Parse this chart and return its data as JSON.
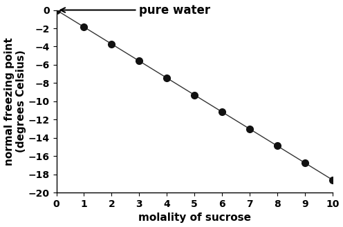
{
  "x": [
    0,
    1,
    2,
    3,
    4,
    5,
    6,
    7,
    8,
    9,
    10
  ],
  "y": [
    0,
    -1.86,
    -3.72,
    -5.58,
    -7.44,
    -9.3,
    -11.16,
    -13.02,
    -14.88,
    -16.74,
    -18.6
  ],
  "xlabel": "molality of sucrose",
  "ylabel": "normal freezing point\n(degrees Celsius)",
  "xlim": [
    0,
    10
  ],
  "ylim": [
    -20,
    0
  ],
  "xticks": [
    0,
    1,
    2,
    3,
    4,
    5,
    6,
    7,
    8,
    9,
    10
  ],
  "yticks": [
    0,
    -2,
    -4,
    -6,
    -8,
    -10,
    -12,
    -14,
    -16,
    -18,
    -20
  ],
  "annotation_text": "pure water",
  "line_color": "#333333",
  "marker_color": "#111111",
  "bg_color": "#ffffff",
  "marker_size": 7,
  "linewidth": 1.0,
  "label_fontsize": 11,
  "tick_fontsize": 10,
  "annotation_fontsize": 12
}
